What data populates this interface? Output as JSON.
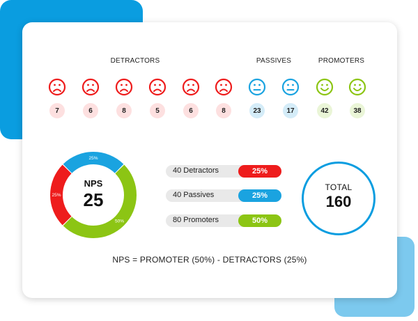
{
  "colors": {
    "detractor": "#ee1c1c",
    "passive": "#1aa3e0",
    "promoter": "#8cc514",
    "total_ring": "#0a9de0"
  },
  "groups": {
    "detractors_label": "DETRACTORS",
    "passives_label": "PASSIVES",
    "promoters_label": "PROMOTERS"
  },
  "faces": [
    {
      "type": "detractor",
      "icon": "sad-face-icon",
      "count": "7"
    },
    {
      "type": "detractor",
      "icon": "sad-face-icon",
      "count": "6"
    },
    {
      "type": "detractor",
      "icon": "sad-face-icon",
      "count": "8"
    },
    {
      "type": "detractor",
      "icon": "sad-face-icon",
      "count": "5"
    },
    {
      "type": "detractor",
      "icon": "sad-face-icon",
      "count": "6"
    },
    {
      "type": "detractor",
      "icon": "sad-face-icon",
      "count": "8"
    },
    {
      "type": "passive",
      "icon": "neutral-face-icon",
      "count": "23"
    },
    {
      "type": "passive",
      "icon": "neutral-face-icon",
      "count": "17"
    },
    {
      "type": "promoter",
      "icon": "happy-face-icon",
      "count": "42"
    },
    {
      "type": "promoter",
      "icon": "happy-face-icon",
      "count": "38"
    }
  ],
  "donut": {
    "title": "NPS",
    "value": "25",
    "segments": [
      {
        "name": "Passives",
        "value": 25,
        "label": "25%"
      },
      {
        "name": "Promoters",
        "value": 50,
        "label": "50%"
      },
      {
        "name": "Detractors",
        "value": 25,
        "label": "25%"
      }
    ]
  },
  "stats": [
    {
      "label": "40 Detractors",
      "percent": "25%"
    },
    {
      "label": "40 Passives",
      "percent": "25%"
    },
    {
      "label": "80 Promoters",
      "percent": "50%"
    }
  ],
  "total": {
    "title": "TOTAL",
    "value": "160"
  },
  "formula": "NPS = PROMOTER (50%) - DETRACTORS (25%)"
}
